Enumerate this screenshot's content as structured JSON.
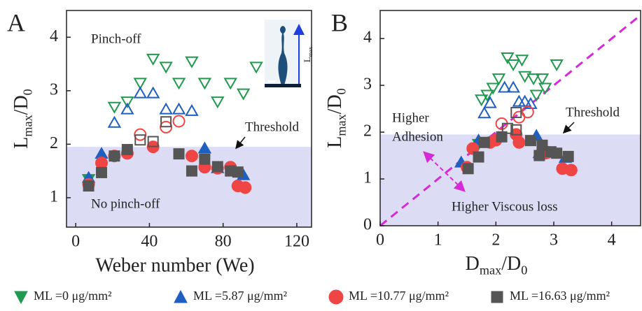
{
  "chart_data": [
    {
      "type": "scatter",
      "panel": "A",
      "xlabel": "Weber number (We)",
      "ylabel": [
        "L",
        "max",
        "/D",
        "0"
      ],
      "xlim": [
        -5,
        128
      ],
      "ylim": [
        0.45,
        4.5
      ],
      "xticks": [
        0,
        40,
        80,
        120
      ],
      "yticks": [
        1,
        2,
        3,
        4
      ],
      "threshold": 1.95,
      "threshold_color": "#dcdcf5",
      "annotations": [
        "Pinch-off",
        "No pinch-off",
        "Threshold"
      ],
      "inset_label": [
        "L",
        "max"
      ],
      "series": [
        {
          "name": "ML =0 μg/mm²",
          "marker": "triangle-down",
          "color": "#1f9a4e",
          "x": [
            7,
            21,
            28,
            35,
            42,
            49,
            56,
            63,
            70,
            77,
            84,
            91,
            98
          ],
          "values": [
            1.35,
            2.7,
            2.8,
            3.15,
            3.6,
            3.45,
            3.15,
            3.55,
            3.15,
            2.8,
            3.15,
            2.95,
            3.45
          ]
        },
        {
          "name": "ML =5.87 μg/mm²",
          "marker": "triangle-up",
          "color": "#1f5fbf",
          "x": [
            7,
            14,
            21,
            28,
            35,
            42,
            49,
            56,
            63,
            70,
            77,
            91
          ],
          "values": [
            1.37,
            1.82,
            2.4,
            2.65,
            2.95,
            2.95,
            2.65,
            2.65,
            2.62,
            1.92,
            1.55,
            1.42
          ]
        },
        {
          "name": "ML =10.77 μg/mm²",
          "marker": "circle",
          "color": "#f04545",
          "x": [
            7,
            14,
            21,
            28,
            35,
            42,
            49,
            56,
            63,
            70,
            77,
            84,
            88,
            92
          ],
          "values": [
            1.25,
            1.65,
            1.78,
            1.83,
            2.18,
            1.95,
            2.32,
            2.43,
            1.78,
            1.57,
            1.55,
            1.57,
            1.22,
            1.19
          ]
        },
        {
          "name": "ML =16.63 μg/mm²",
          "marker": "square",
          "color": "#555555",
          "x": [
            7,
            14,
            21,
            28,
            35,
            42,
            49,
            56,
            63,
            70,
            77,
            84,
            88
          ],
          "values": [
            1.22,
            1.47,
            1.78,
            1.9,
            2.08,
            2.05,
            2.42,
            1.82,
            1.5,
            1.72,
            1.58,
            1.5,
            1.48
          ]
        }
      ]
    },
    {
      "type": "scatter",
      "panel": "B",
      "xlabel": [
        "D",
        "max",
        "/D",
        "0"
      ],
      "ylabel": [
        "L",
        "max",
        "/D",
        "0"
      ],
      "xlim": [
        0,
        4.5
      ],
      "ylim": [
        0,
        4.6
      ],
      "xticks": [
        0,
        1,
        2,
        3,
        4
      ],
      "yticks": [
        0,
        1,
        2,
        3,
        4
      ],
      "threshold": 1.95,
      "threshold_color": "#dcdcf5",
      "diagonal_color": "#d62ad6",
      "annotations": [
        "Higher",
        "Adhesion",
        "Threshold",
        "Higher Viscous loss"
      ],
      "series": [
        {
          "marker": "triangle-down",
          "color": "#1f9a4e",
          "x": [
            1.7,
            1.75,
            1.85,
            1.95,
            2.05,
            2.2,
            2.3,
            2.45,
            2.5,
            2.65,
            2.7,
            2.8,
            2.85,
            3.05
          ],
          "values": [
            1.75,
            2.7,
            2.8,
            2.95,
            3.15,
            3.6,
            3.45,
            3.55,
            3.2,
            3.15,
            2.8,
            3.15,
            2.95,
            3.45
          ]
        },
        {
          "marker": "triangle-up",
          "color": "#1f5fbf",
          "x": [
            1.4,
            1.7,
            1.8,
            1.9,
            2.15,
            2.3,
            2.4,
            2.5,
            2.6,
            2.7,
            2.75,
            3.2
          ],
          "values": [
            1.35,
            1.82,
            2.4,
            2.62,
            2.95,
            2.95,
            2.65,
            2.65,
            2.6,
            1.92,
            1.55,
            1.45
          ]
        },
        {
          "marker": "circle",
          "color": "#f04545",
          "x": [
            1.5,
            1.6,
            1.9,
            2.0,
            2.1,
            2.35,
            2.4,
            2.55,
            2.4,
            2.8,
            2.85,
            2.9,
            3.15,
            3.3
          ],
          "values": [
            1.25,
            1.65,
            1.78,
            1.83,
            2.18,
            1.95,
            2.32,
            2.43,
            1.78,
            1.57,
            1.55,
            1.57,
            1.22,
            1.19
          ]
        },
        {
          "marker": "square",
          "color": "#555555",
          "x": [
            1.52,
            1.7,
            1.8,
            2.1,
            2.2,
            2.35,
            2.35,
            2.6,
            2.75,
            2.8,
            2.95,
            3.05,
            3.25
          ],
          "values": [
            1.22,
            1.47,
            1.78,
            1.9,
            2.08,
            2.05,
            2.42,
            1.82,
            1.5,
            1.72,
            1.58,
            1.55,
            1.48
          ]
        }
      ]
    }
  ]
}
